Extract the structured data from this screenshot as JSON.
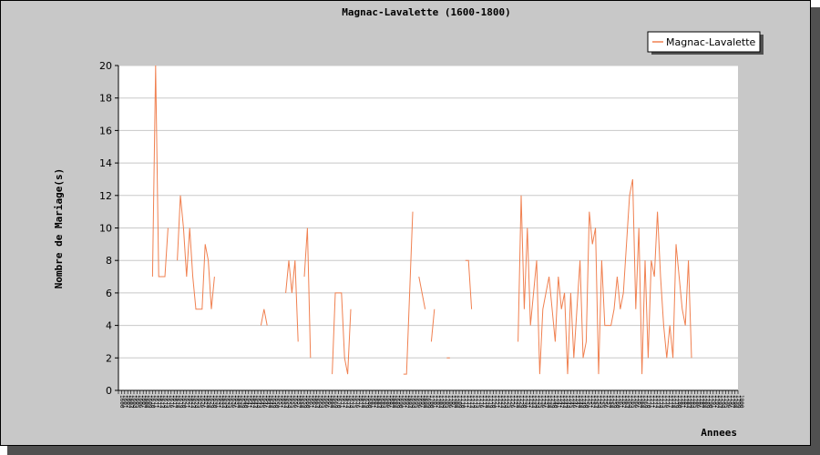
{
  "chart_data": {
    "type": "line",
    "title": "Magnac-Lavalette (1600-1800)",
    "xlabel": "Annees",
    "ylabel": "Nombre de Mariage(s)",
    "x": {
      "start": 1600,
      "end": 1800
    },
    "ylim": [
      0,
      20
    ],
    "yticks": [
      0,
      2,
      4,
      6,
      8,
      10,
      12,
      14,
      16,
      18,
      20
    ],
    "grid": true,
    "legend_position": "top-right",
    "series": [
      {
        "name": "Magnac-Lavalette",
        "color": "#f08050",
        "values": [
          null,
          null,
          null,
          null,
          null,
          null,
          null,
          null,
          null,
          null,
          null,
          7,
          20,
          7,
          7,
          7,
          10,
          null,
          null,
          8,
          12,
          10,
          7,
          10,
          7,
          5,
          5,
          5,
          9,
          8,
          5,
          7,
          null,
          null,
          null,
          null,
          null,
          null,
          null,
          null,
          null,
          null,
          null,
          null,
          null,
          null,
          4,
          5,
          4,
          null,
          null,
          null,
          null,
          null,
          6,
          8,
          6,
          8,
          3,
          null,
          7,
          10,
          2,
          null,
          null,
          null,
          null,
          null,
          null,
          1,
          6,
          6,
          6,
          2,
          1,
          5,
          null,
          null,
          null,
          null,
          null,
          null,
          null,
          null,
          null,
          null,
          null,
          null,
          null,
          null,
          null,
          null,
          1,
          1,
          6,
          11,
          null,
          7,
          6,
          5,
          null,
          3,
          5,
          null,
          null,
          null,
          2,
          2,
          null,
          null,
          null,
          null,
          8,
          8,
          5,
          null,
          null,
          null,
          null,
          null,
          null,
          null,
          null,
          null,
          null,
          null,
          null,
          null,
          null,
          3,
          12,
          5,
          10,
          4,
          6,
          8,
          1,
          5,
          6,
          7,
          5,
          3,
          7,
          5,
          6,
          1,
          6,
          2,
          5,
          8,
          2,
          3,
          11,
          9,
          10,
          1,
          8,
          4,
          4,
          4,
          5,
          7,
          5,
          6,
          9,
          12,
          13,
          5,
          10,
          1,
          8,
          2,
          8,
          7,
          11,
          7,
          4,
          2,
          4,
          2,
          9,
          7,
          5,
          4,
          8,
          2
        ]
      }
    ]
  }
}
